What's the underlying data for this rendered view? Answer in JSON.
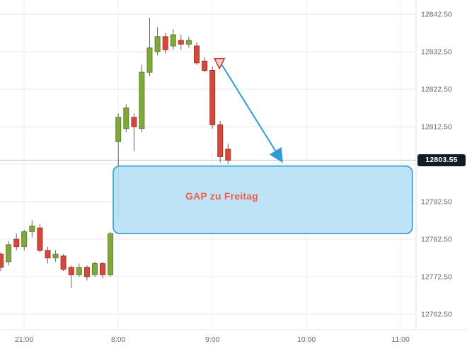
{
  "chart_data": {
    "type": "candlestick",
    "title": "",
    "xlabel": "",
    "ylabel": "",
    "grid": true,
    "y_tick_interval": 10,
    "y_axis_range": [
      12757,
      12847
    ],
    "up_color": "#81A83C",
    "up_border": "#5F8428",
    "down_color": "#D5483B",
    "down_border": "#B03226",
    "wick_color": "#606060",
    "grid_color": "#E9E9E9",
    "vgrid_color": "#F1F1F1",
    "axis_text_color": "#666666",
    "y_ticks": [
      {
        "price": 12842.5,
        "label": "12842.50"
      },
      {
        "price": 12832.5,
        "label": "12832.50"
      },
      {
        "price": 12822.5,
        "label": "12822.50"
      },
      {
        "price": 12812.5,
        "label": "12812.50"
      },
      {
        "price": 12802.5,
        "label": ""
      },
      {
        "price": 12792.5,
        "label": "12792.50"
      },
      {
        "price": 12782.5,
        "label": "12782.50"
      },
      {
        "price": 12772.5,
        "label": "12772.50"
      },
      {
        "price": 12762.5,
        "label": "12762.50"
      }
    ],
    "x_ticks": [
      {
        "label": "21:00",
        "slot": 3
      },
      {
        "label": "8:00",
        "slot": 15
      },
      {
        "label": "9:00",
        "slot": 27
      },
      {
        "label": "10:00",
        "slot": 39
      },
      {
        "label": "11:00",
        "slot": 51
      }
    ],
    "candles": [
      {
        "t": "20:45",
        "o": 12778.5,
        "h": 12779.0,
        "l": 12774.0,
        "c": 12775.0
      },
      {
        "t": "20:50",
        "o": 12776.5,
        "h": 12782.0,
        "l": 12775.5,
        "c": 12781.0
      },
      {
        "t": "20:55",
        "o": 12782.5,
        "h": 12784.0,
        "l": 12779.5,
        "c": 12780.5
      },
      {
        "t": "21:00",
        "o": 12780.5,
        "h": 12785.0,
        "l": 12779.5,
        "c": 12784.5
      },
      {
        "t": "21:05",
        "o": 12784.5,
        "h": 12787.5,
        "l": 12783.0,
        "c": 12786.0
      },
      {
        "t": "21:10",
        "o": 12785.5,
        "h": 12786.5,
        "l": 12779.0,
        "c": 12779.5
      },
      {
        "t": "21:15",
        "o": 12779.5,
        "h": 12780.5,
        "l": 12776.0,
        "c": 12777.5
      },
      {
        "t": "21:20",
        "o": 12777.5,
        "h": 12779.5,
        "l": 12776.5,
        "c": 12778.5
      },
      {
        "t": "21:25",
        "o": 12778.0,
        "h": 12778.5,
        "l": 12774.0,
        "c": 12774.5
      },
      {
        "t": "21:30",
        "o": 12775.0,
        "h": 12775.5,
        "l": 12769.5,
        "c": 12773.0
      },
      {
        "t": "21:35",
        "o": 12773.0,
        "h": 12776.0,
        "l": 12772.5,
        "c": 12775.0
      },
      {
        "t": "21:40",
        "o": 12775.0,
        "h": 12775.5,
        "l": 12771.5,
        "c": 12772.5
      },
      {
        "t": "21:45",
        "o": 12773.0,
        "h": 12776.5,
        "l": 12772.5,
        "c": 12776.0
      },
      {
        "t": "21:50",
        "o": 12776.0,
        "h": 12776.5,
        "l": 12772.0,
        "c": 12773.0
      },
      {
        "t": "21:55",
        "o": 12773.0,
        "h": 12784.5,
        "l": 12772.5,
        "c": 12784.0
      },
      {
        "t": "8:00",
        "o": 12808.5,
        "h": 12816.0,
        "l": 12788.0,
        "c": 12815.0
      },
      {
        "t": "8:05",
        "o": 12812.0,
        "h": 12818.5,
        "l": 12811.0,
        "c": 12817.5
      },
      {
        "t": "8:10",
        "o": 12815.0,
        "h": 12816.0,
        "l": 12806.0,
        "c": 12812.5
      },
      {
        "t": "8:15",
        "o": 12812.0,
        "h": 12829.0,
        "l": 12811.0,
        "c": 12827.0
      },
      {
        "t": "8:20",
        "o": 12827.0,
        "h": 12841.5,
        "l": 12826.0,
        "c": 12833.5
      },
      {
        "t": "8:25",
        "o": 12832.5,
        "h": 12839.0,
        "l": 12831.5,
        "c": 12836.5
      },
      {
        "t": "8:30",
        "o": 12836.5,
        "h": 12837.5,
        "l": 12832.0,
        "c": 12833.0
      },
      {
        "t": "8:35",
        "o": 12834.0,
        "h": 12838.5,
        "l": 12833.0,
        "c": 12837.0
      },
      {
        "t": "8:40",
        "o": 12835.5,
        "h": 12837.0,
        "l": 12833.0,
        "c": 12834.5
      },
      {
        "t": "8:45",
        "o": 12834.5,
        "h": 12836.5,
        "l": 12833.5,
        "c": 12835.5
      },
      {
        "t": "8:50",
        "o": 12834.0,
        "h": 12835.0,
        "l": 12829.0,
        "c": 12829.5
      },
      {
        "t": "8:55",
        "o": 12830.0,
        "h": 12831.0,
        "l": 12827.0,
        "c": 12827.5
      },
      {
        "t": "9:00",
        "o": 12827.5,
        "h": 12828.5,
        "l": 12812.0,
        "c": 12813.0
      },
      {
        "t": "9:05",
        "o": 12813.0,
        "h": 12814.0,
        "l": 12803.0,
        "c": 12804.5
      },
      {
        "t": "9:10",
        "o": 12806.5,
        "h": 12808.0,
        "l": 12802.5,
        "c": 12803.55
      }
    ],
    "annotations": {
      "gap_box": {
        "label": "GAP zu Freitag",
        "label_color": "#EE5F4B",
        "price_top": 12802.0,
        "price_bottom": 12784.0,
        "slot_start": 14.35,
        "slot_end": 52.5,
        "label_slot": 28.2,
        "label_price": 12794.0,
        "fill": "#B5DFF5",
        "border": "#2F9BD6"
      },
      "arrow": {
        "from_slot": 28.2,
        "from_price": 12829.0,
        "to_slot": 35.8,
        "to_price": 12803.5,
        "color": "#2F9BD6"
      },
      "sell_marker": {
        "slot": 27.9,
        "price": 12828.0,
        "color": "#C5382A"
      },
      "price_line": {
        "price": 12803.55,
        "color": "#C4C4C4"
      },
      "price_badge": {
        "value": "12803.55",
        "price": 12803.55,
        "bg": "#101D29",
        "text_color": "#FFFFFF"
      }
    }
  }
}
